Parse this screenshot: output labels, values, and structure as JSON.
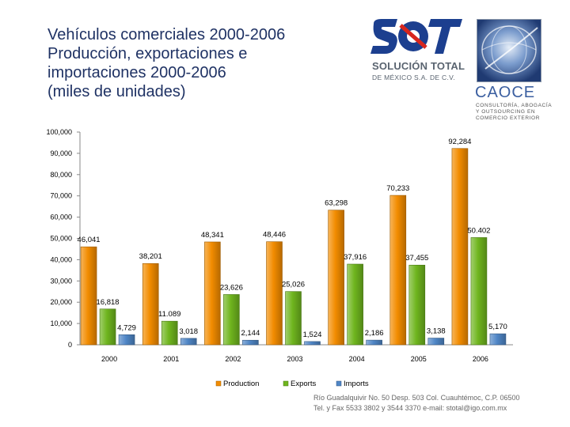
{
  "title_lines": [
    "Vehículos comerciales 2000-2006",
    "Producción, exportaciones e",
    "importaciones 2000-2006",
    "(miles de unidades)"
  ],
  "logos": {
    "sot_name": "SOLUCIÓN TOTAL",
    "sot_sub": "DE MÉXICO S.A. DE C.V.",
    "caoce_name": "CAOCE",
    "caoce_sub": [
      "CONSULTORÍA, ABOGACÍA",
      "Y OUTSOURCING EN",
      "COMERCIO EXTERIOR"
    ]
  },
  "chart_data": {
    "type": "bar",
    "title": "",
    "xlabel": "",
    "ylabel": "",
    "categories": [
      "2000",
      "2001",
      "2002",
      "2003",
      "2004",
      "2005",
      "2006"
    ],
    "ylim": [
      0,
      100000
    ],
    "ytick_labels": [
      "0",
      "10,000",
      "20,000",
      "30,000",
      "40,000",
      "50,000",
      "60,000",
      "70,000",
      "80,000",
      "90,000",
      "100,000"
    ],
    "grid": false,
    "legend_position": "bottom",
    "series": [
      {
        "name": "Production",
        "color": "#f28c00",
        "values": [
          46041,
          38201,
          48341,
          48446,
          63298,
          70233,
          92284
        ],
        "labels": [
          "46,041",
          "38,201",
          "48,341",
          "48,446",
          "63,298",
          "70,233",
          "92,284"
        ]
      },
      {
        "name": "Exports",
        "color": "#6fb51e",
        "values": [
          16818,
          11089,
          23626,
          25026,
          37916,
          37455,
          50402
        ],
        "labels": [
          "16,818",
          "11.089",
          "23,626",
          "25,026",
          "37,916",
          "37,455",
          "50.402"
        ]
      },
      {
        "name": "Imports",
        "color": "#4f86c6",
        "values": [
          4729,
          3018,
          2144,
          1524,
          2186,
          3138,
          5170
        ],
        "labels": [
          "4,729",
          "3,018",
          "2,144",
          "1,524",
          "2,186",
          "3,138",
          "5,170"
        ]
      }
    ]
  },
  "footer": {
    "line1": "Río Guadalquivir No. 50 Desp. 503 Col. Cuauhtémoc, C.P. 06500",
    "line2": "Tel. y Fax 5533 3802 y 3544 3370    e-mail: stotal@igo.com.mx"
  }
}
